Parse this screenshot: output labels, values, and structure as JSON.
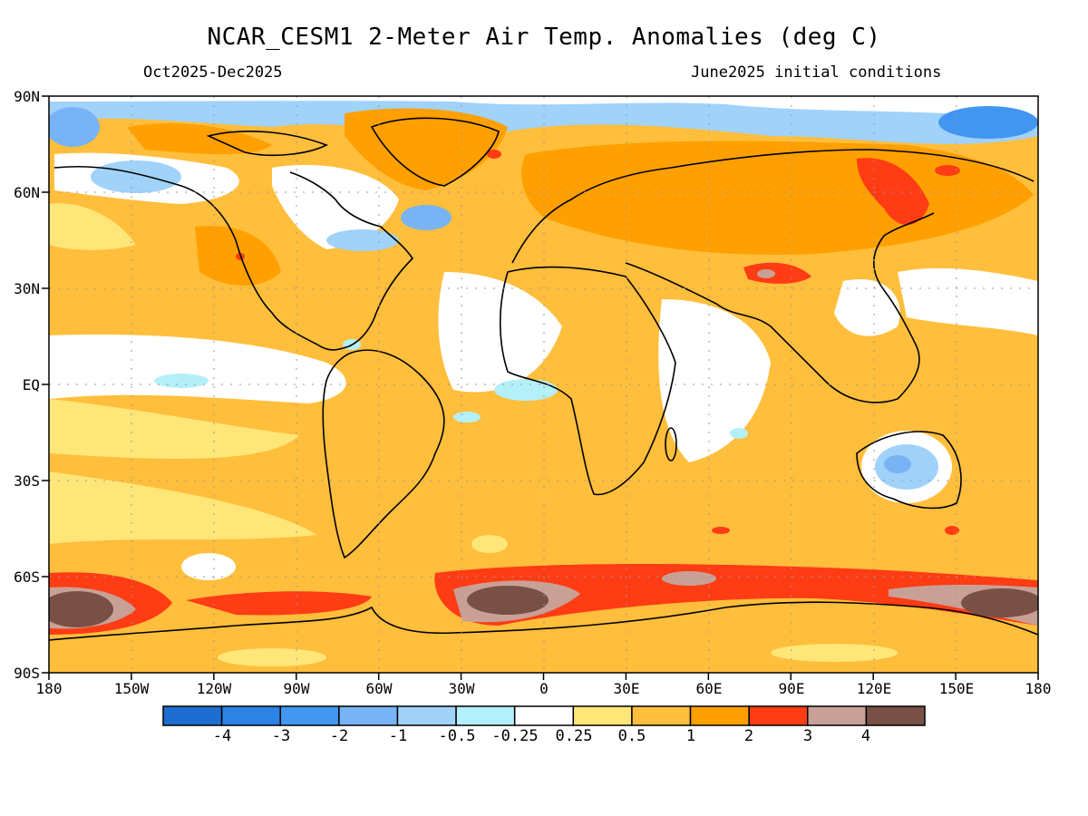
{
  "title": "NCAR_CESM1 2-Meter Air Temp. Anomalies (deg C)",
  "subtitle_left": "Oct2025-Dec2025",
  "subtitle_right": "June2025 initial conditions",
  "lat_labels": [
    "90N",
    "60N",
    "30N",
    "EQ",
    "30S",
    "60S",
    "90S"
  ],
  "lon_labels": [
    "180",
    "150W",
    "120W",
    "90W",
    "60W",
    "30W",
    "0",
    "30E",
    "60E",
    "90E",
    "120E",
    "150E",
    "180"
  ],
  "colorbar": {
    "colors": [
      "#1e6ed2",
      "#2d82e6",
      "#4196f0",
      "#78b4f5",
      "#a0d2fa",
      "#b4f0fa",
      "#ffffff",
      "#ffe678",
      "#ffbe3c",
      "#ffa000",
      "#ff3c14",
      "#c8a096",
      "#785046"
    ],
    "labels": [
      "-4",
      "-3",
      "-2",
      "-1",
      "-0.5",
      "-0.25",
      "0.25",
      "0.5",
      "1",
      "2",
      "3",
      "4"
    ]
  }
}
